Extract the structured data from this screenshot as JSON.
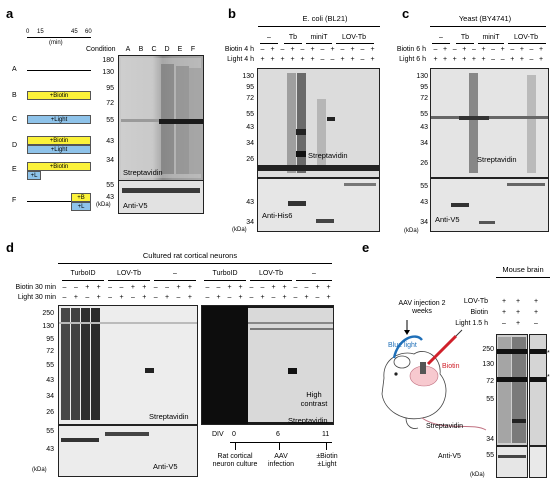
{
  "panels": {
    "a": {
      "label": "a",
      "axis_ticks": [
        "0",
        "15",
        "45",
        "60"
      ],
      "axis_unit": "(min)",
      "condition_header": "Condition",
      "lanes": [
        "A",
        "B",
        "C",
        "D",
        "E",
        "F"
      ],
      "rows": [
        {
          "letter": "A",
          "bars": []
        },
        {
          "letter": "B",
          "bars": [
            "+Biotin"
          ]
        },
        {
          "letter": "C",
          "bars": [
            "+Light"
          ]
        },
        {
          "letter": "D",
          "bars": [
            "+Biotin",
            "+Light"
          ]
        },
        {
          "letter": "E",
          "bars": [
            "+Biotin",
            "+L"
          ]
        },
        {
          "letter": "F",
          "bars": [
            "+B",
            "+L"
          ]
        }
      ],
      "mw_top": [
        "180",
        "130",
        "95",
        "72",
        "55",
        "43",
        "34"
      ],
      "mw_bottom": [
        "55",
        "43"
      ],
      "kda": "(kDa)",
      "blot_top_label": "Streptavidin",
      "blot_bottom_label": "Anti-V5"
    },
    "b": {
      "label": "b",
      "organism": "E. coli (BL21)",
      "groups": [
        "–",
        "Tb",
        "miniT",
        "LOV-Tb"
      ],
      "row1_label": "Biotin 4 h",
      "row2_label": "Light 4 h",
      "row1": [
        "–",
        "+",
        "–",
        "+",
        "–",
        "+",
        "–",
        "+",
        "–",
        "+",
        "–",
        "+"
      ],
      "row2": [
        "+",
        "+",
        "+",
        "+",
        "+",
        "+",
        "–",
        "–",
        "+",
        "+",
        "–",
        "+"
      ],
      "mw_top": [
        "130",
        "95",
        "72",
        "55",
        "43",
        "34",
        "26"
      ],
      "mw_bottom": [
        "43",
        "34"
      ],
      "kda": "(kDa)",
      "blot_top_label": "Streptavidin",
      "blot_bottom_label": "Anti-His6"
    },
    "c": {
      "label": "c",
      "organism": "Yeast (BY4741)",
      "groups": [
        "–",
        "Tb",
        "miniT",
        "LOV-Tb"
      ],
      "row1_label": "Biotin 6 h",
      "row2_label": "Light 6 h",
      "row1": [
        "–",
        "+",
        "–",
        "+",
        "–",
        "+",
        "–",
        "+",
        "–",
        "+",
        "–",
        "+"
      ],
      "row2": [
        "+",
        "+",
        "+",
        "+",
        "+",
        "+",
        "–",
        "–",
        "+",
        "+",
        "–",
        "+"
      ],
      "mw_top": [
        "130",
        "95",
        "72",
        "55",
        "43",
        "34",
        "26"
      ],
      "mw_bottom": [
        "55",
        "43",
        "34"
      ],
      "kda": "(kDa)",
      "blot_top_label": "Streptavidin",
      "blot_bottom_label": "Anti-V5"
    },
    "d": {
      "label": "d",
      "title": "Cultured rat cortical neurons",
      "groups": [
        "TurboID",
        "LOV-Tb",
        "–"
      ],
      "row1_label": "Biotin 30 min",
      "row2_label": "Light 30 min",
      "row1": [
        "–",
        "–",
        "+",
        "+",
        "–",
        "–",
        "+",
        "+",
        "–",
        "–",
        "+",
        "+"
      ],
      "row2": [
        "–",
        "+",
        "–",
        "+",
        "–",
        "+",
        "–",
        "+",
        "–",
        "+",
        "–",
        "+"
      ],
      "mw_top": [
        "250",
        "130",
        "95",
        "72",
        "55",
        "43",
        "34",
        "26"
      ],
      "mw_bottom": [
        "55",
        "43"
      ],
      "kda": "(kDa)",
      "blot_top_label": "Streptavidin",
      "blot_bottom_label": "Anti-V5",
      "contrast_groups": [
        "TurboID",
        "LOV-Tb",
        "–"
      ],
      "contrast_label": "High contrast",
      "contrast_strep_label": "Streptavidin",
      "timeline": {
        "axis_label": "DIV",
        "ticks": [
          "0",
          "6",
          "11"
        ],
        "steps": [
          "Rat cortical neuron culture",
          "AAV infection",
          "±Biotin ±Light"
        ]
      }
    },
    "e": {
      "label": "e",
      "tissue": "Mouse brain",
      "injection": "AAV injection 2 weeks",
      "blue_light": "Blue light",
      "biotin": "Biotin",
      "rows": [
        {
          "label": "LOV-Tb",
          "values": [
            "+",
            "+",
            "+"
          ]
        },
        {
          "label": "Biotin",
          "values": [
            "+",
            "+",
            "+"
          ]
        },
        {
          "label": "Light 1.5 h",
          "values": [
            "–",
            "+",
            "–"
          ]
        }
      ],
      "mw_top": [
        "250",
        "130",
        "72",
        "55",
        "34"
      ],
      "mw_bottom": [
        "55"
      ],
      "kda": "(kDa)",
      "blot_top_label": "Streptavidin",
      "blot_bottom_label": "Anti-V5",
      "star": "*"
    }
  },
  "colors": {
    "biotin_bar": "#fbf23a",
    "light_bar": "#8ec3ea",
    "blue_light": "#1f6fb8",
    "biotin_text": "#d0202a"
  }
}
